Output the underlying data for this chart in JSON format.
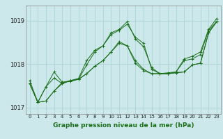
{
  "xlabel": "Graphe pression niveau de la mer (hPa)",
  "background_color": "#cce8ea",
  "grid_color_minor": "#aad4d8",
  "grid_color_major": "#88c0c4",
  "line_color": "#1a6e1a",
  "spine_color": "#888888",
  "xlim": [
    -0.5,
    23.5
  ],
  "ylim": [
    1016.85,
    1019.35
  ],
  "yticks": [
    1017,
    1018,
    1019
  ],
  "xticks": [
    0,
    1,
    2,
    3,
    4,
    5,
    6,
    7,
    8,
    9,
    10,
    11,
    12,
    13,
    14,
    15,
    16,
    17,
    18,
    19,
    20,
    21,
    22,
    23
  ],
  "series": [
    [
      1017.55,
      1017.12,
      1017.15,
      1017.38,
      1017.55,
      1017.62,
      1017.65,
      1017.78,
      1017.95,
      1018.08,
      1018.28,
      1018.52,
      1018.42,
      1018.08,
      1017.88,
      1017.78,
      1017.78,
      1017.78,
      1017.8,
      1017.82,
      1017.98,
      1018.02,
      1018.72,
      1018.98
    ],
    [
      1017.55,
      1017.12,
      1017.48,
      1017.68,
      1017.55,
      1017.62,
      1017.65,
      1017.98,
      1018.28,
      1018.42,
      1018.68,
      1018.78,
      1018.92,
      1018.62,
      1018.48,
      1017.88,
      1017.78,
      1017.78,
      1017.82,
      1018.08,
      1018.12,
      1018.22,
      1018.78,
      1018.98
    ],
    [
      1017.55,
      1017.12,
      1017.15,
      1017.38,
      1017.58,
      1017.6,
      1017.65,
      1017.78,
      1017.95,
      1018.08,
      1018.28,
      1018.48,
      1018.42,
      1018.02,
      1017.85,
      1017.78,
      1017.78,
      1017.78,
      1017.8,
      1017.82,
      1017.98,
      1018.02,
      1018.72,
      1018.98
    ],
    [
      1017.62,
      1017.12,
      1017.48,
      1017.82,
      1017.58,
      1017.62,
      1017.67,
      1018.08,
      1018.32,
      1018.42,
      1018.72,
      1018.8,
      1018.98,
      1018.58,
      1018.4,
      1017.92,
      1017.78,
      1017.8,
      1017.82,
      1018.12,
      1018.18,
      1018.28,
      1018.8,
      1019.05
    ]
  ]
}
